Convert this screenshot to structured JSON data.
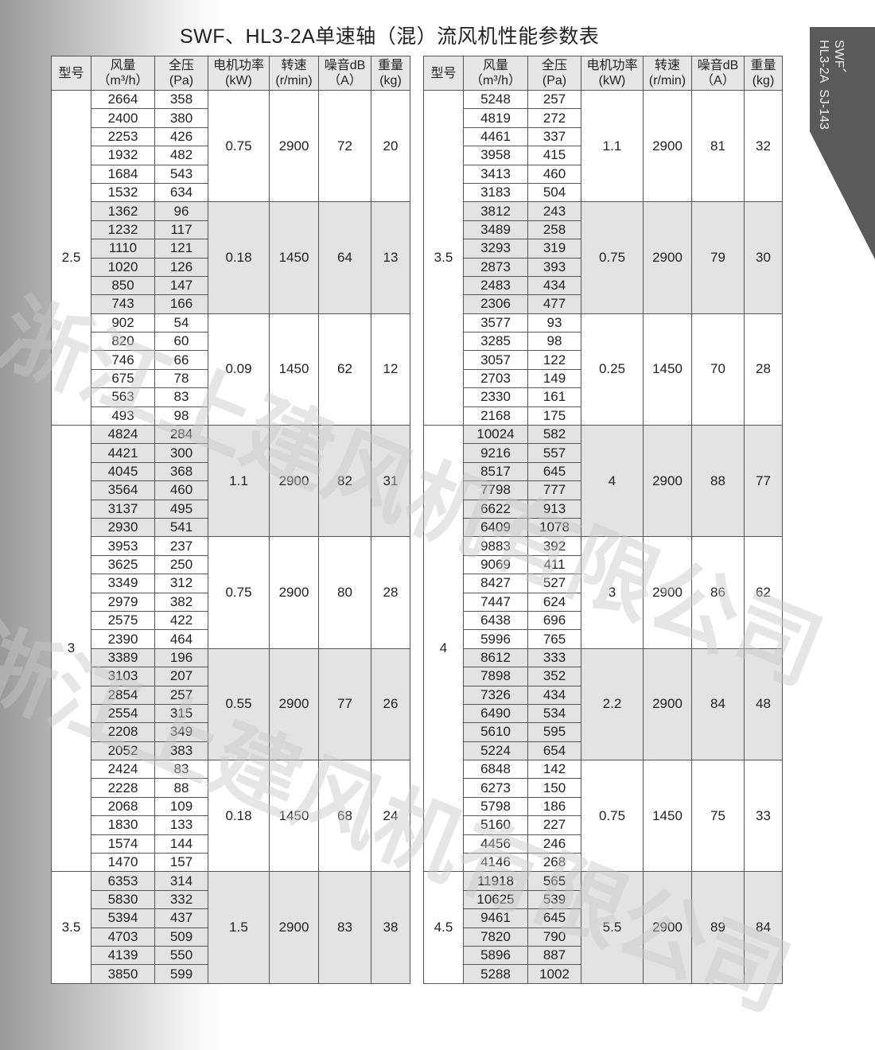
{
  "title": "SWF、HL3-2A单速轴（混）流风机性能参数表",
  "side_tab": {
    "line1": "SWF、",
    "line2": "HL3-2A  SJ-143"
  },
  "watermark": "浙江上建风机有限公司",
  "headers": [
    {
      "l1": "型号",
      "l2": ""
    },
    {
      "l1": "风量",
      "l2": "（m³/h）"
    },
    {
      "l1": "全压",
      "l2": "(Pa)"
    },
    {
      "l1": "电机功率",
      "l2": "(kW)"
    },
    {
      "l1": "转速",
      "l2": "(r/min)"
    },
    {
      "l1": "噪音dB",
      "l2": "（A）"
    },
    {
      "l1": "重量",
      "l2": "(kg)"
    }
  ],
  "left_table": [
    {
      "model": "2.5",
      "blocks": [
        {
          "rows": [
            [
              "2664",
              "358"
            ],
            [
              "2400",
              "380"
            ],
            [
              "2253",
              "426"
            ],
            [
              "1932",
              "482"
            ],
            [
              "1684",
              "543"
            ],
            [
              "1532",
              "634"
            ]
          ],
          "power": "0.75",
          "speed": "2900",
          "noise": "72",
          "weight": "20"
        },
        {
          "rows": [
            [
              "1362",
              "96"
            ],
            [
              "1232",
              "117"
            ],
            [
              "1110",
              "121"
            ],
            [
              "1020",
              "126"
            ],
            [
              "850",
              "147"
            ],
            [
              "743",
              "166"
            ]
          ],
          "power": "0.18",
          "speed": "1450",
          "noise": "64",
          "weight": "13"
        },
        {
          "rows": [
            [
              "902",
              "54"
            ],
            [
              "820",
              "60"
            ],
            [
              "746",
              "66"
            ],
            [
              "675",
              "78"
            ],
            [
              "563",
              "83"
            ],
            [
              "493",
              "98"
            ]
          ],
          "power": "0.09",
          "speed": "1450",
          "noise": "62",
          "weight": "12"
        }
      ]
    },
    {
      "model": "3",
      "blocks": [
        {
          "rows": [
            [
              "4824",
              "284"
            ],
            [
              "4421",
              "300"
            ],
            [
              "4045",
              "368"
            ],
            [
              "3564",
              "460"
            ],
            [
              "3137",
              "495"
            ],
            [
              "2930",
              "541"
            ]
          ],
          "power": "1.1",
          "speed": "2900",
          "noise": "82",
          "weight": "31"
        },
        {
          "rows": [
            [
              "3953",
              "237"
            ],
            [
              "3625",
              "250"
            ],
            [
              "3349",
              "312"
            ],
            [
              "2979",
              "382"
            ],
            [
              "2575",
              "422"
            ],
            [
              "2390",
              "464"
            ]
          ],
          "power": "0.75",
          "speed": "2900",
          "noise": "80",
          "weight": "28"
        },
        {
          "rows": [
            [
              "3389",
              "196"
            ],
            [
              "3103",
              "207"
            ],
            [
              "2854",
              "257"
            ],
            [
              "2554",
              "315"
            ],
            [
              "2208",
              "349"
            ],
            [
              "2052",
              "383"
            ]
          ],
          "power": "0.55",
          "speed": "2900",
          "noise": "77",
          "weight": "26"
        },
        {
          "rows": [
            [
              "2424",
              "83"
            ],
            [
              "2228",
              "88"
            ],
            [
              "2068",
              "109"
            ],
            [
              "1830",
              "133"
            ],
            [
              "1574",
              "144"
            ],
            [
              "1470",
              "157"
            ]
          ],
          "power": "0.18",
          "speed": "1450",
          "noise": "68",
          "weight": "24"
        }
      ]
    },
    {
      "model": "3.5",
      "blocks": [
        {
          "rows": [
            [
              "6353",
              "314"
            ],
            [
              "5830",
              "332"
            ],
            [
              "5394",
              "437"
            ],
            [
              "4703",
              "509"
            ],
            [
              "4139",
              "550"
            ],
            [
              "3850",
              "599"
            ]
          ],
          "power": "1.5",
          "speed": "2900",
          "noise": "83",
          "weight": "38"
        }
      ]
    }
  ],
  "right_table": [
    {
      "model": "3.5",
      "blocks": [
        {
          "rows": [
            [
              "5248",
              "257"
            ],
            [
              "4819",
              "272"
            ],
            [
              "4461",
              "337"
            ],
            [
              "3958",
              "415"
            ],
            [
              "3413",
              "460"
            ],
            [
              "3183",
              "504"
            ]
          ],
          "power": "1.1",
          "speed": "2900",
          "noise": "81",
          "weight": "32"
        },
        {
          "rows": [
            [
              "3812",
              "243"
            ],
            [
              "3489",
              "258"
            ],
            [
              "3293",
              "319"
            ],
            [
              "2873",
              "393"
            ],
            [
              "2483",
              "434"
            ],
            [
              "2306",
              "477"
            ]
          ],
          "power": "0.75",
          "speed": "2900",
          "noise": "79",
          "weight": "30"
        },
        {
          "rows": [
            [
              "3577",
              "93"
            ],
            [
              "3285",
              "98"
            ],
            [
              "3057",
              "122"
            ],
            [
              "2703",
              "149"
            ],
            [
              "2330",
              "161"
            ],
            [
              "2168",
              "175"
            ]
          ],
          "power": "0.25",
          "speed": "1450",
          "noise": "70",
          "weight": "28"
        }
      ]
    },
    {
      "model": "4",
      "blocks": [
        {
          "rows": [
            [
              "10024",
              "582"
            ],
            [
              "9216",
              "557"
            ],
            [
              "8517",
              "645"
            ],
            [
              "7798",
              "777"
            ],
            [
              "6622",
              "913"
            ],
            [
              "6409",
              "1078"
            ]
          ],
          "power": "4",
          "speed": "2900",
          "noise": "88",
          "weight": "77"
        },
        {
          "rows": [
            [
              "9883",
              "392"
            ],
            [
              "9069",
              "411"
            ],
            [
              "8427",
              "527"
            ],
            [
              "7447",
              "624"
            ],
            [
              "6438",
              "696"
            ],
            [
              "5996",
              "765"
            ]
          ],
          "power": "3",
          "speed": "2900",
          "noise": "86",
          "weight": "62"
        },
        {
          "rows": [
            [
              "8612",
              "333"
            ],
            [
              "7898",
              "352"
            ],
            [
              "7326",
              "434"
            ],
            [
              "6490",
              "534"
            ],
            [
              "5610",
              "595"
            ],
            [
              "5224",
              "654"
            ]
          ],
          "power": "2.2",
          "speed": "2900",
          "noise": "84",
          "weight": "48"
        },
        {
          "rows": [
            [
              "6848",
              "142"
            ],
            [
              "6273",
              "150"
            ],
            [
              "5798",
              "186"
            ],
            [
              "5160",
              "227"
            ],
            [
              "4456",
              "246"
            ],
            [
              "4146",
              "268"
            ]
          ],
          "power": "0.75",
          "speed": "1450",
          "noise": "75",
          "weight": "33"
        }
      ]
    },
    {
      "model": "4.5",
      "blocks": [
        {
          "rows": [
            [
              "11918",
              "565"
            ],
            [
              "10625",
              "539"
            ],
            [
              "9461",
              "645"
            ],
            [
              "7820",
              "790"
            ],
            [
              "5896",
              "887"
            ],
            [
              "5288",
              "1002"
            ]
          ],
          "power": "5.5",
          "speed": "2900",
          "noise": "89",
          "weight": "84"
        }
      ]
    }
  ]
}
